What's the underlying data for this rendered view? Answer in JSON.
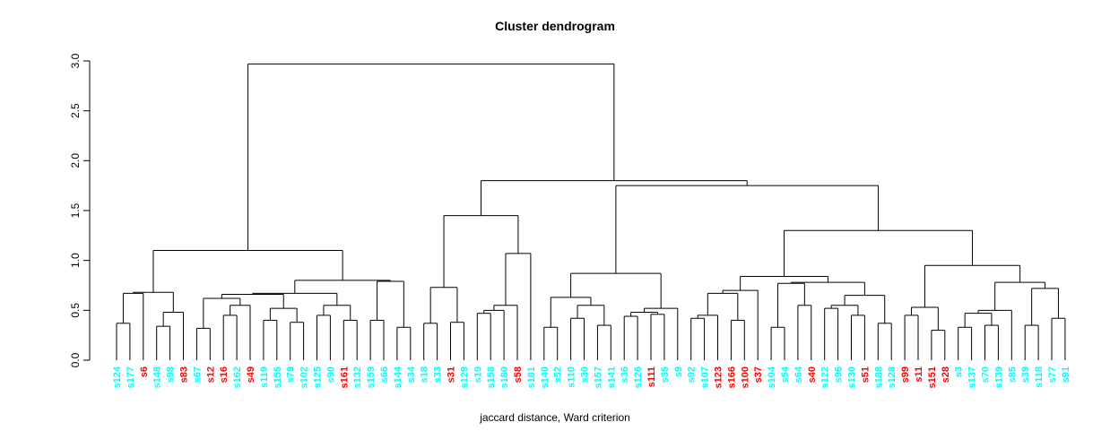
{
  "chart_data": {
    "type": "dendrogram",
    "title": "Cluster dendrogram",
    "xlabel": "jaccard distance, Ward criterion",
    "ylim": [
      0,
      3.0
    ],
    "yticks": [
      "0.0",
      "0.5",
      "1.0",
      "1.5",
      "2.0",
      "2.5",
      "3.0"
    ],
    "colors": {
      "cyan": "#00ffff",
      "red": "#ff0000",
      "line": "#000000"
    },
    "leaves": [
      {
        "label": "s124",
        "color": "cyan"
      },
      {
        "label": "s177",
        "color": "cyan"
      },
      {
        "label": "s6",
        "color": "red"
      },
      {
        "label": "s148",
        "color": "cyan"
      },
      {
        "label": "s98",
        "color": "cyan"
      },
      {
        "label": "s83",
        "color": "red"
      },
      {
        "label": "s67",
        "color": "cyan"
      },
      {
        "label": "s12",
        "color": "red"
      },
      {
        "label": "s16",
        "color": "red"
      },
      {
        "label": "s162",
        "color": "cyan"
      },
      {
        "label": "s49",
        "color": "red"
      },
      {
        "label": "s119",
        "color": "cyan"
      },
      {
        "label": "s155",
        "color": "cyan"
      },
      {
        "label": "s79",
        "color": "cyan"
      },
      {
        "label": "s102",
        "color": "cyan"
      },
      {
        "label": "s125",
        "color": "cyan"
      },
      {
        "label": "s90",
        "color": "cyan"
      },
      {
        "label": "s161",
        "color": "red"
      },
      {
        "label": "s132",
        "color": "cyan"
      },
      {
        "label": "s159",
        "color": "cyan"
      },
      {
        "label": "s66",
        "color": "cyan"
      },
      {
        "label": "s144",
        "color": "cyan"
      },
      {
        "label": "s34",
        "color": "cyan"
      },
      {
        "label": "s18",
        "color": "cyan"
      },
      {
        "label": "s33",
        "color": "cyan"
      },
      {
        "label": "s31",
        "color": "red"
      },
      {
        "label": "s129",
        "color": "cyan"
      },
      {
        "label": "s19",
        "color": "cyan"
      },
      {
        "label": "s158",
        "color": "cyan"
      },
      {
        "label": "s180",
        "color": "cyan"
      },
      {
        "label": "s58",
        "color": "red"
      },
      {
        "label": "s181",
        "color": "cyan"
      },
      {
        "label": "s140",
        "color": "cyan"
      },
      {
        "label": "s52",
        "color": "cyan"
      },
      {
        "label": "s110",
        "color": "cyan"
      },
      {
        "label": "s30",
        "color": "cyan"
      },
      {
        "label": "s157",
        "color": "cyan"
      },
      {
        "label": "s141",
        "color": "cyan"
      },
      {
        "label": "s36",
        "color": "cyan"
      },
      {
        "label": "s126",
        "color": "cyan"
      },
      {
        "label": "s111",
        "color": "red"
      },
      {
        "label": "s35",
        "color": "cyan"
      },
      {
        "label": "s9",
        "color": "cyan"
      },
      {
        "label": "s92",
        "color": "cyan"
      },
      {
        "label": "s107",
        "color": "cyan"
      },
      {
        "label": "s123",
        "color": "red"
      },
      {
        "label": "s166",
        "color": "red"
      },
      {
        "label": "s100",
        "color": "red"
      },
      {
        "label": "s37",
        "color": "red"
      },
      {
        "label": "s104",
        "color": "cyan"
      },
      {
        "label": "s54",
        "color": "cyan"
      },
      {
        "label": "s64",
        "color": "cyan"
      },
      {
        "label": "s40",
        "color": "red"
      },
      {
        "label": "s122",
        "color": "cyan"
      },
      {
        "label": "s96",
        "color": "cyan"
      },
      {
        "label": "s130",
        "color": "cyan"
      },
      {
        "label": "s51",
        "color": "red"
      },
      {
        "label": "s188",
        "color": "cyan"
      },
      {
        "label": "s128",
        "color": "cyan"
      },
      {
        "label": "s99",
        "color": "red"
      },
      {
        "label": "s11",
        "color": "red"
      },
      {
        "label": "s151",
        "color": "red"
      },
      {
        "label": "s28",
        "color": "red"
      },
      {
        "label": "s3",
        "color": "cyan"
      },
      {
        "label": "s137",
        "color": "cyan"
      },
      {
        "label": "s70",
        "color": "cyan"
      },
      {
        "label": "s139",
        "color": "cyan"
      },
      {
        "label": "s85",
        "color": "cyan"
      },
      {
        "label": "s39",
        "color": "cyan"
      },
      {
        "label": "s118",
        "color": "cyan"
      },
      {
        "label": "s77",
        "color": "cyan"
      },
      {
        "label": "s91",
        "color": "cyan"
      }
    ],
    "tree": [
      2.97,
      [
        1.1,
        [
          0.68,
          [
            0.67,
            [
              0.37,
              0,
              1
            ],
            2
          ],
          [
            0.48,
            [
              0.34,
              3,
              4
            ],
            5
          ]
        ],
        [
          0.8,
          [
            0.67,
            [
              0.66,
              [
                0.62,
                [
                  0.32,
                  6,
                  7
                ],
                [
                  0.55,
                  [
                    0.45,
                    8,
                    9
                  ],
                  10
                ]
              ],
              [
                0.52,
                [
                  0.4,
                  11,
                  12
                ],
                [
                  0.38,
                  13,
                  14
                ]
              ]
            ],
            [
              0.55,
              [
                0.45,
                15,
                16
              ],
              [
                0.4,
                17,
                18
              ]
            ]
          ],
          [
            0.79,
            [
              0.4,
              19,
              20
            ],
            [
              0.33,
              21,
              22
            ]
          ]
        ]
      ],
      [
        1.8,
        [
          1.45,
          [
            0.73,
            [
              0.37,
              23,
              24
            ],
            [
              0.38,
              25,
              26
            ]
          ],
          [
            1.07,
            [
              0.55,
              [
                0.5,
                [
                  0.47,
                  27,
                  28
                ],
                29
              ],
              30
            ],
            31
          ]
        ],
        [
          1.75,
          [
            0.87,
            [
              0.63,
              [
                0.33,
                32,
                33
              ],
              [
                0.55,
                [
                  0.42,
                  34,
                  35
                ],
                [
                  0.35,
                  36,
                  37
                ]
              ]
            ],
            [
              0.52,
              [
                0.48,
                [
                  0.44,
                  38,
                  39
                ],
                [
                  0.46,
                  40,
                  41
                ]
              ],
              42
            ]
          ],
          [
            1.3,
            [
              0.84,
              [
                0.7,
                [
                  0.67,
                  [
                    0.45,
                    [
                      0.42,
                      43,
                      44
                    ],
                    45
                  ],
                  [
                    0.4,
                    46,
                    47
                  ]
                ],
                48
              ],
              [
                0.78,
                [
                  0.77,
                  [
                    0.33,
                    49,
                    50
                  ],
                  [
                    0.55,
                    51,
                    52
                  ]
                ],
                [
                  0.65,
                  [
                    0.55,
                    [
                      0.52,
                      53,
                      54
                    ],
                    [
                      0.45,
                      55,
                      56
                    ]
                  ],
                  [
                    0.37,
                    57,
                    58
                  ]
                ]
              ]
            ],
            [
              0.95,
              [
                0.53,
                [
                  0.45,
                  59,
                  60
                ],
                [
                  0.3,
                  61,
                  62
                ]
              ],
              [
                0.78,
                [
                  0.5,
                  [
                    0.47,
                    [
                      0.33,
                      63,
                      64
                    ],
                    [
                      0.35,
                      65,
                      66
                    ]
                  ],
                  67
                ],
                [
                  0.72,
                  [
                    0.35,
                    68,
                    69
                  ],
                  [
                    0.42,
                    70,
                    71
                  ]
                ]
              ]
            ]
          ]
        ]
      ]
    ]
  }
}
